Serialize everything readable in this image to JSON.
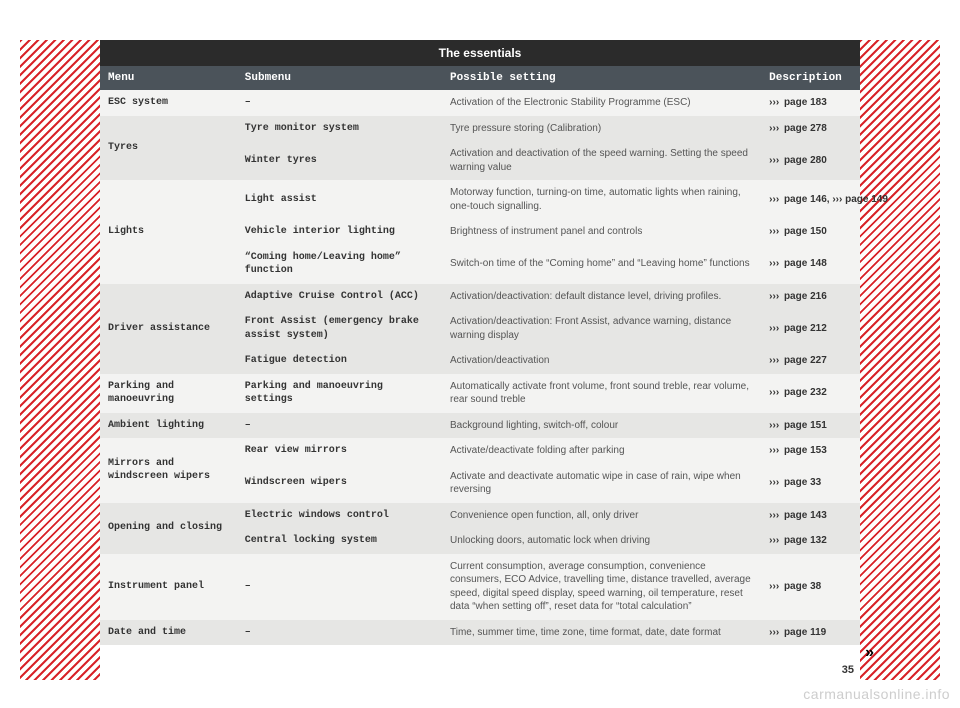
{
  "title": "The essentials",
  "page_number": "35",
  "continuation_mark": "»",
  "watermark": "carmanualsonline.info",
  "columns": {
    "menu": "Menu",
    "submenu": "Submenu",
    "setting": "Possible setting",
    "desc": "Description"
  },
  "col_widths_pct": {
    "menu": 18,
    "sub": 27,
    "set": 42,
    "desc": 13
  },
  "colors": {
    "title_bg": "#2b2b2b",
    "header_bg": "#4b535a",
    "row_light": "#f3f3f2",
    "row_dark": "#e6e6e4",
    "text_body": "#555555",
    "text_strong": "#333333",
    "hatch": "#d8232a",
    "page_bg": "#ffffff"
  },
  "chevron": "›››",
  "rows": [
    {
      "shade": "light",
      "menu": "ESC system",
      "menu_rowspan": 1,
      "submenu": "–",
      "setting": "Activation of the Electronic Stability Programme (ESC)",
      "desc": "page 183"
    },
    {
      "shade": "dark",
      "menu": "Tyres",
      "menu_rowspan": 2,
      "submenu": "Tyre monitor system",
      "setting": "Tyre pressure storing (Calibration)",
      "desc": "page 278"
    },
    {
      "shade": "dark",
      "menu": null,
      "menu_rowspan": 0,
      "submenu": "Winter tyres",
      "setting": "Activation and deactivation of the speed warning. Setting the speed warning value",
      "desc": "page 280"
    },
    {
      "shade": "light",
      "menu": "Lights",
      "menu_rowspan": 3,
      "submenu": "Light assist",
      "setting": "Motorway function, turning-on time, automatic lights when raining, one-touch signalling.",
      "desc": "page 146, ››› page 149"
    },
    {
      "shade": "light",
      "menu": null,
      "menu_rowspan": 0,
      "submenu": "Vehicle interior lighting",
      "setting": "Brightness of instrument panel and controls",
      "desc": "page 150"
    },
    {
      "shade": "light",
      "menu": null,
      "menu_rowspan": 0,
      "submenu": "“Coming home/Leaving home” function",
      "setting": "Switch-on time of the “Coming home” and “Leaving home” functions",
      "desc": "page 148"
    },
    {
      "shade": "dark",
      "menu": "Driver assistance",
      "menu_rowspan": 3,
      "submenu": "Adaptive Cruise Control (ACC)",
      "setting": "Activation/deactivation: default distance level, driving profiles.",
      "desc": "page 216"
    },
    {
      "shade": "dark",
      "menu": null,
      "menu_rowspan": 0,
      "submenu": "Front Assist (emergency brake assist system)",
      "setting": "Activation/deactivation: Front Assist, advance warning, distance warning display",
      "desc": "page 212"
    },
    {
      "shade": "dark",
      "menu": null,
      "menu_rowspan": 0,
      "submenu": "Fatigue detection",
      "setting": "Activation/deactivation",
      "desc": "page 227"
    },
    {
      "shade": "light",
      "menu": "Parking and manoeuvring",
      "menu_rowspan": 1,
      "submenu": "Parking and manoeuvring settings",
      "setting": "Automatically activate front volume, front sound treble, rear volume, rear sound treble",
      "desc": "page 232"
    },
    {
      "shade": "dark",
      "menu": "Ambient lighting",
      "menu_rowspan": 1,
      "submenu": "–",
      "setting": "Background lighting, switch-off, colour",
      "desc": "page 151"
    },
    {
      "shade": "light",
      "menu": "Mirrors and windscreen wipers",
      "menu_rowspan": 2,
      "submenu": "Rear view mirrors",
      "setting": "Activate/deactivate folding after parking",
      "desc": "page 153"
    },
    {
      "shade": "light",
      "menu": null,
      "menu_rowspan": 0,
      "submenu": "Windscreen wipers",
      "setting": "Activate and deactivate automatic wipe in case of rain, wipe when reversing",
      "desc": "page 33"
    },
    {
      "shade": "dark",
      "menu": "Opening and closing",
      "menu_rowspan": 2,
      "submenu": "Electric windows control",
      "setting": "Convenience open function, all, only driver",
      "desc": "page 143"
    },
    {
      "shade": "dark",
      "menu": null,
      "menu_rowspan": 0,
      "submenu": "Central locking system",
      "setting": "Unlocking doors, automatic lock when driving",
      "desc": "page 132"
    },
    {
      "shade": "light",
      "menu": "Instrument panel",
      "menu_rowspan": 1,
      "submenu": "–",
      "setting": "Current consumption, average consumption, convenience consumers, ECO Advice, travelling time, distance travelled, average speed, digital speed display, speed warning, oil temperature, reset data “when setting off”, reset data for “total calculation”",
      "desc": "page 38"
    },
    {
      "shade": "dark",
      "menu": "Date and time",
      "menu_rowspan": 1,
      "submenu": "–",
      "setting": "Time, summer time, time zone, time format, date, date format",
      "desc": "page 119"
    }
  ]
}
